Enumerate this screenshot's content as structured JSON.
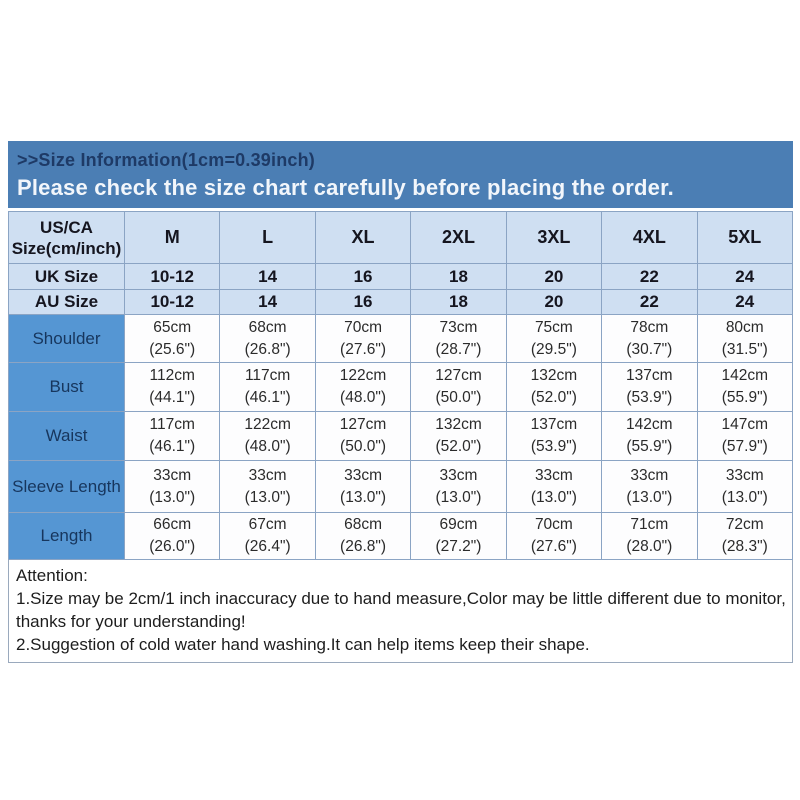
{
  "banner": {
    "title": ">>Size Information(1cm=0.39inch)",
    "subtitle": "Please check the size chart carefully before placing the order."
  },
  "table": {
    "corner_header": {
      "line1": "US/CA",
      "line2": "Size(cm/inch)"
    },
    "sizes": [
      "M",
      "L",
      "XL",
      "2XL",
      "3XL",
      "4XL",
      "5XL"
    ],
    "size_rows": [
      {
        "label": "UK Size",
        "values": [
          "10-12",
          "14",
          "16",
          "18",
          "20",
          "22",
          "24"
        ]
      },
      {
        "label": "AU Size",
        "values": [
          "10-12",
          "14",
          "16",
          "18",
          "20",
          "22",
          "24"
        ]
      }
    ],
    "measurement_rows": [
      {
        "label": "Shoulder",
        "cm": [
          "65cm",
          "68cm",
          "70cm",
          "73cm",
          "75cm",
          "78cm",
          "80cm"
        ],
        "inch": [
          "(25.6\")",
          "(26.8\")",
          "(27.6\")",
          "(28.7\")",
          "(29.5\")",
          "(30.7\")",
          "(31.5\")"
        ]
      },
      {
        "label": "Bust",
        "cm": [
          "112cm",
          "117cm",
          "122cm",
          "127cm",
          "132cm",
          "137cm",
          "142cm"
        ],
        "inch": [
          "(44.1\")",
          "(46.1\")",
          "(48.0\")",
          "(50.0\")",
          "(52.0\")",
          "(53.9\")",
          "(55.9\")"
        ]
      },
      {
        "label": "Waist",
        "cm": [
          "117cm",
          "122cm",
          "127cm",
          "132cm",
          "137cm",
          "142cm",
          "147cm"
        ],
        "inch": [
          "(46.1\")",
          "(48.0\")",
          "(50.0\")",
          "(52.0\")",
          "(53.9\")",
          "(55.9\")",
          "(57.9\")"
        ]
      },
      {
        "label": "Sleeve Length",
        "cm": [
          "33cm",
          "33cm",
          "33cm",
          "33cm",
          "33cm",
          "33cm",
          "33cm"
        ],
        "inch": [
          "(13.0\")",
          "(13.0\")",
          "(13.0\")",
          "(13.0\")",
          "(13.0\")",
          "(13.0\")",
          "(13.0\")"
        ]
      },
      {
        "label": "Length",
        "cm": [
          "66cm",
          "67cm",
          "68cm",
          "69cm",
          "70cm",
          "71cm",
          "72cm"
        ],
        "inch": [
          "(26.0\")",
          "(26.4\")",
          "(26.8\")",
          "(27.2\")",
          "(27.6\")",
          "(28.0\")",
          "(28.3\")"
        ]
      }
    ]
  },
  "attention": {
    "title": "Attention:",
    "lines": [
      "1.Size may be 2cm/1 inch inaccuracy due to hand measure,Color may be little different due to monitor,",
      "thanks for your understanding!",
      "2.Suggestion of cold water hand washing.It can help items keep their shape."
    ]
  },
  "colors": {
    "banner_bg": "#4b7eb4",
    "banner_title_text": "#1e3a66",
    "banner_subtitle_text": "#f2f6fb",
    "light_row_bg": "#cfdff2",
    "label_cell_bg": "#5596d3",
    "label_text": "#17365d",
    "table_border": "#8ba4c4"
  }
}
